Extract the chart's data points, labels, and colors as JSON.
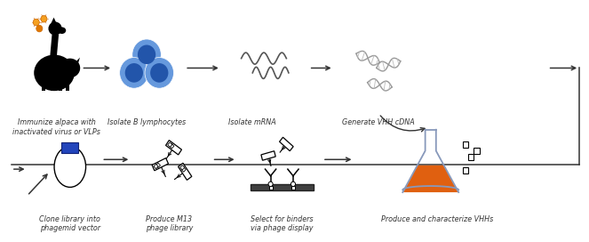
{
  "background_color": "#ffffff",
  "figsize": [
    6.63,
    2.72
  ],
  "dpi": 100,
  "top_row_labels": [
    "Immunize alpaca with\ninactivated virus or VLPs",
    "Isolate B lymphocytes",
    "Isolate mRNA",
    "Generate VHH cDNA"
  ],
  "bottom_row_labels": [
    "Clone library into\nphagemid vector",
    "Produce M13\nphage library",
    "Select for binders\nvia phage display",
    "Produce and characterize VHHs"
  ],
  "arrow_color": "#333333",
  "text_color": "#333333",
  "cell_outer": "#6699dd",
  "cell_inner": "#2255aa",
  "dna_color": "#999999",
  "flask_liquid": "#e06010",
  "flask_line": "#8899bb",
  "plasmid_top": "#2244bb",
  "virus_colors": [
    "#f5a020",
    "#f5a020",
    "#e07800"
  ]
}
